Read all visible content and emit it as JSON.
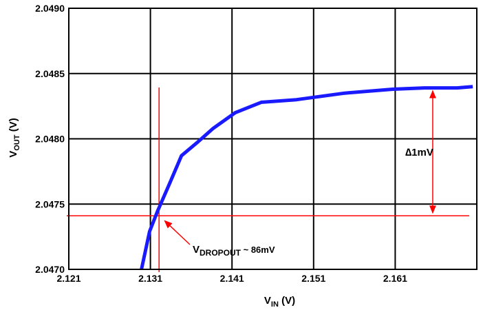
{
  "chart_data": {
    "type": "line",
    "title": "",
    "xlabel": {
      "main": "V",
      "sub": "IN",
      "unit": " (V)"
    },
    "ylabel": {
      "main": "V",
      "sub": "OUT",
      "unit": " (V)"
    },
    "xlim": [
      2.121,
      2.171
    ],
    "ylim": [
      2.047,
      2.049
    ],
    "xticks": [
      2.121,
      2.131,
      2.141,
      2.151,
      2.161
    ],
    "xtick_labels": [
      "2.121",
      "2.131",
      "2.141",
      "2.151",
      "2.161"
    ],
    "yticks": [
      2.047,
      2.0475,
      2.048,
      2.0485,
      2.049
    ],
    "ytick_labels": [
      "2.0470",
      "2.0475",
      "2.0480",
      "2.0485",
      "2.0490"
    ],
    "grid": true,
    "series": [
      {
        "color": "#1a1aff",
        "x": [
          2.1299,
          2.1309,
          2.1319,
          2.1333,
          2.1348,
          2.1367,
          2.1387,
          2.1414,
          2.1446,
          2.1489,
          2.1548,
          2.1607,
          2.1646,
          2.1686,
          2.1705
        ],
        "y": [
          2.047,
          2.04729,
          2.04745,
          2.04765,
          2.04787,
          2.04797,
          2.04808,
          2.0482,
          2.04828,
          2.0483,
          2.04835,
          2.04838,
          2.04839,
          2.04839,
          2.0484
        ]
      }
    ]
  },
  "annotations": {
    "color": "#ff0000",
    "dropout_vline_x": 2.13206,
    "dropout_hline_y": 2.04741,
    "dropout_label": {
      "main": "V",
      "sub": "DROPOUT",
      "rest": " ~ 86mV"
    },
    "delta_label": "∆1mV",
    "delta_x": 2.1656,
    "delta_range": [
      2.04741,
      2.04839
    ]
  }
}
